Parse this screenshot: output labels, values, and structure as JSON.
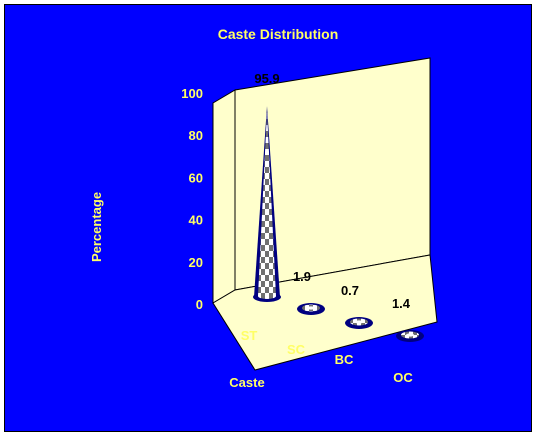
{
  "chart_data": {
    "type": "bar",
    "style": "3d-cone",
    "title": "Caste Distribution",
    "xlabel": "Caste",
    "ylabel": "Percentage",
    "categories": [
      "ST",
      "SC",
      "BC",
      "OC"
    ],
    "values": [
      95.9,
      1.9,
      0.7,
      1.4
    ],
    "data_labels": [
      "95.9",
      "1.9",
      "0.7",
      "1.4"
    ],
    "yticks": [
      "0",
      "20",
      "40",
      "60",
      "80",
      "100"
    ],
    "ylim": [
      0,
      100
    ],
    "grid": false,
    "legend": "none"
  },
  "colors": {
    "background": "#0000ff",
    "text": "#ffff66",
    "data_label": "#000000",
    "wall": "#ffffcc",
    "cone_edge": "#000080"
  }
}
